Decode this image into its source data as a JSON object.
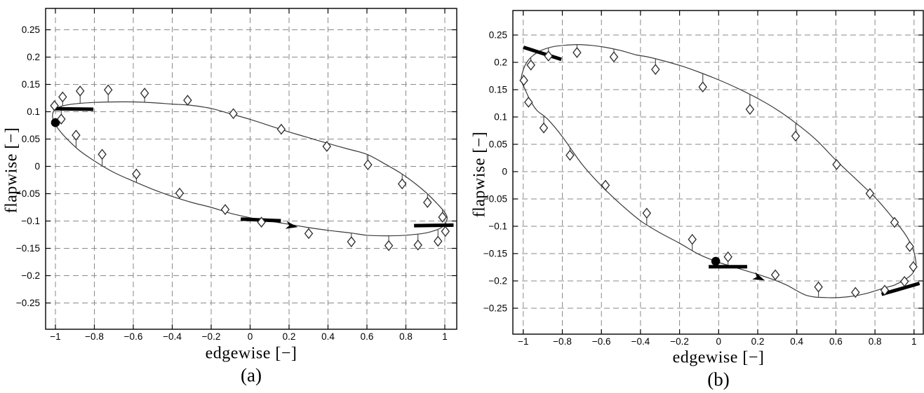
{
  "page": {
    "background": "#ffffff"
  },
  "chart_data": [
    {
      "id": "a",
      "type": "line+scatter",
      "caption": "(a)",
      "xlabel": "edgewise [−]",
      "ylabel": "flapwise [−]",
      "xlim": [
        -1.05,
        1.06
      ],
      "ylim": [
        -0.3,
        0.29
      ],
      "grid": true,
      "x_ticks": [
        -1,
        -0.8,
        -0.6,
        -0.4,
        -0.2,
        0,
        0.2,
        0.4,
        0.6,
        0.8,
        1
      ],
      "x_tick_labels": [
        "−1",
        "−0.8",
        "−0.6",
        "−0.4",
        "−0.2",
        "0",
        "0.2",
        "0.4",
        "0.6",
        "0.8",
        "1"
      ],
      "y_ticks": [
        -0.25,
        -0.2,
        -0.15,
        -0.1,
        -0.05,
        0,
        0.05,
        0.1,
        0.15,
        0.2,
        0.25
      ],
      "y_tick_labels": [
        "−0.25",
        "−0.2",
        "−0.15",
        "−0.1",
        "−0.05",
        "0",
        "0.05",
        "0.1",
        "0.15",
        "0.2",
        "0.25"
      ],
      "series": [
        {
          "name": "loop-curve",
          "type": "line",
          "closed": true,
          "points": [
            [
              -1.015,
              0.092
            ],
            [
              -1.005,
              0.103
            ],
            [
              -0.97,
              0.11
            ],
            [
              -0.9,
              0.1145
            ],
            [
              -0.8,
              0.117
            ],
            [
              -0.7,
              0.118
            ],
            [
              -0.6,
              0.118
            ],
            [
              -0.5,
              0.1165
            ],
            [
              -0.4,
              0.114
            ],
            [
              -0.31,
              0.112
            ],
            [
              -0.2,
              0.106
            ],
            [
              -0.1,
              0.096
            ],
            [
              0,
              0.086
            ],
            [
              0.1,
              0.0745
            ],
            [
              0.2,
              0.063
            ],
            [
              0.3,
              0.0525
            ],
            [
              0.4,
              0.042
            ],
            [
              0.5,
              0.032
            ],
            [
              0.6,
              0.022
            ],
            [
              0.7,
              0.003
            ],
            [
              0.78,
              -0.014
            ],
            [
              0.85,
              -0.032
            ],
            [
              0.91,
              -0.05
            ],
            [
              0.96,
              -0.068
            ],
            [
              0.995,
              -0.082
            ],
            [
              1.012,
              -0.093
            ],
            [
              1.005,
              -0.103
            ],
            [
              0.99,
              -0.11
            ],
            [
              0.96,
              -0.116
            ],
            [
              0.9,
              -0.122
            ],
            [
              0.8,
              -0.126
            ],
            [
              0.7,
              -0.127
            ],
            [
              0.6,
              -0.126
            ],
            [
              0.52,
              -0.122
            ],
            [
              0.4,
              -0.117
            ],
            [
              0.3,
              -0.112
            ],
            [
              0.2,
              -0.106
            ],
            [
              0.1,
              -0.1
            ],
            [
              0,
              -0.094
            ],
            [
              -0.1,
              -0.086
            ],
            [
              -0.2,
              -0.075
            ],
            [
              -0.3,
              -0.066
            ],
            [
              -0.4,
              -0.055
            ],
            [
              -0.5,
              -0.042
            ],
            [
              -0.6,
              -0.027
            ],
            [
              -0.7,
              -0.011
            ],
            [
              -0.8,
              0.01
            ],
            [
              -0.88,
              0.03
            ],
            [
              -0.94,
              0.05
            ],
            [
              -0.98,
              0.066
            ],
            [
              -1.005,
              0.08
            ]
          ]
        },
        {
          "name": "diamond-markers",
          "type": "scatter",
          "marker": "diamond",
          "stem_to_curve": true,
          "points": [
            [
              -1.005,
              0.111
            ],
            [
              -0.963,
              0.127
            ],
            [
              -0.873,
              0.138
            ],
            [
              -0.729,
              0.14
            ],
            [
              -0.542,
              0.134
            ],
            [
              -0.321,
              0.121
            ],
            [
              -0.086,
              0.0965
            ],
            [
              0.16,
              0.068
            ],
            [
              0.394,
              0.0365
            ],
            [
              0.605,
              0.003
            ],
            [
              0.781,
              -0.032
            ],
            [
              0.911,
              -0.066
            ],
            [
              0.988,
              -0.093
            ],
            [
              1.003,
              -0.119
            ],
            [
              0.965,
              -0.137
            ],
            [
              0.862,
              -0.144
            ],
            [
              0.712,
              -0.145
            ],
            [
              0.52,
              -0.138
            ],
            [
              0.301,
              -0.123
            ],
            [
              0.058,
              -0.102
            ],
            [
              -0.128,
              -0.079
            ],
            [
              -0.362,
              -0.049
            ],
            [
              -0.584,
              -0.014
            ],
            [
              -0.76,
              0.022
            ],
            [
              -0.894,
              0.057
            ],
            [
              -0.97,
              0.0865
            ]
          ]
        }
      ],
      "annotations": [
        {
          "type": "dot",
          "x": -1.0,
          "y": 0.08
        },
        {
          "type": "bar",
          "x1": -1.0,
          "y1": 0.1055,
          "x2": -0.805,
          "y2": 0.1045
        },
        {
          "type": "bar",
          "x1": -0.048,
          "y1": -0.0965,
          "x2": 0.158,
          "y2": -0.0995
        },
        {
          "type": "arrowhead",
          "x": 0.245,
          "y": -0.111,
          "angle_deg": 9.6
        },
        {
          "type": "bar",
          "x1": 0.842,
          "y1": -0.1085,
          "x2": 1.045,
          "y2": -0.1075
        }
      ],
      "colors": {
        "curve": "#3a3a3a",
        "marker_stroke": "#2a2a2a",
        "marker_fill": "#ffffff",
        "grid": "#8a8a8a",
        "annotation": "#000000",
        "axis": "#000000"
      }
    },
    {
      "id": "b",
      "type": "line+scatter",
      "caption": "(b)",
      "xlabel": "edgewise [−]",
      "ylabel": "flapwise [−]",
      "xlim": [
        -1.05,
        1.05
      ],
      "ylim": [
        -0.3,
        0.29
      ],
      "grid": true,
      "x_ticks": [
        -1,
        -0.8,
        -0.6,
        -0.4,
        -0.2,
        0,
        0.2,
        0.4,
        0.6,
        0.8,
        1
      ],
      "x_tick_labels": [
        "−1",
        "−0.8",
        "−0.6",
        "−0.4",
        "−0.2",
        "0",
        "0.2",
        "0.4",
        "0.6",
        "0.8",
        "1"
      ],
      "y_ticks": [
        -0.25,
        -0.2,
        -0.15,
        -0.1,
        -0.05,
        0,
        0.05,
        0.1,
        0.15,
        0.2,
        0.25
      ],
      "y_tick_labels": [
        "−0.25",
        "−0.2",
        "−0.15",
        "−0.1",
        "−0.05",
        "0",
        "0.05",
        "0.1",
        "0.15",
        "0.2",
        "0.25"
      ],
      "series": [
        {
          "name": "loop-curve",
          "type": "line",
          "closed": true,
          "points": [
            [
              -1.01,
              0.168
            ],
            [
              -1.0,
              0.186
            ],
            [
              -0.98,
              0.201
            ],
            [
              -0.95,
              0.2125
            ],
            [
              -0.91,
              0.2215
            ],
            [
              -0.85,
              0.2285
            ],
            [
              -0.78,
              0.2315
            ],
            [
              -0.72,
              0.2325
            ],
            [
              -0.65,
              0.231
            ],
            [
              -0.58,
              0.2275
            ],
            [
              -0.5,
              0.2215
            ],
            [
              -0.42,
              0.2135
            ],
            [
              -0.35,
              0.209
            ],
            [
              -0.2,
              0.1945
            ],
            [
              -0.1,
              0.182
            ],
            [
              0,
              0.168
            ],
            [
              0.1,
              0.152
            ],
            [
              0.2,
              0.134
            ],
            [
              0.3,
              0.113
            ],
            [
              0.4,
              0.0875
            ],
            [
              0.5,
              0.058
            ],
            [
              0.6,
              0.021
            ],
            [
              0.7,
              -0.013
            ],
            [
              0.8,
              -0.047
            ],
            [
              0.88,
              -0.08
            ],
            [
              0.95,
              -0.112
            ],
            [
              0.98,
              -0.13
            ],
            [
              1.0,
              -0.148
            ],
            [
              1.01,
              -0.17
            ],
            [
              0.995,
              -0.185
            ],
            [
              0.96,
              -0.196
            ],
            [
              0.9,
              -0.2075
            ],
            [
              0.85,
              -0.2125
            ],
            [
              0.75,
              -0.2235
            ],
            [
              0.65,
              -0.2295
            ],
            [
              0.55,
              -0.2305
            ],
            [
              0.45,
              -0.2265
            ],
            [
              0.35,
              -0.208
            ],
            [
              0.29,
              -0.199
            ],
            [
              0.2,
              -0.188
            ],
            [
              0.1,
              -0.177
            ],
            [
              0,
              -0.166
            ],
            [
              -0.1,
              -0.1515
            ],
            [
              -0.2,
              -0.131
            ],
            [
              -0.3,
              -0.112
            ],
            [
              -0.4,
              -0.09
            ],
            [
              -0.5,
              -0.06
            ],
            [
              -0.6,
              -0.026
            ],
            [
              -0.7,
              0.014
            ],
            [
              -0.8,
              0.064
            ],
            [
              -0.875,
              0.096
            ],
            [
              -0.93,
              0.112
            ],
            [
              -0.965,
              0.131
            ],
            [
              -0.99,
              0.15
            ]
          ]
        },
        {
          "name": "diamond-markers",
          "type": "scatter",
          "marker": "diamond",
          "stem_to_curve": true,
          "points": [
            [
              0.048,
              -0.156
            ],
            [
              0.29,
              -0.189
            ],
            [
              0.511,
              -0.211
            ],
            [
              0.7,
              -0.221
            ],
            [
              0.85,
              -0.217
            ],
            [
              0.951,
              -0.201
            ],
            [
              0.996,
              -0.174
            ],
            [
              0.978,
              -0.137
            ],
            [
              0.9,
              -0.093
            ],
            [
              0.774,
              -0.04
            ],
            [
              0.604,
              0.013
            ],
            [
              0.394,
              0.065
            ],
            [
              0.16,
              0.114
            ],
            [
              -0.081,
              0.155
            ],
            [
              -0.323,
              0.187
            ],
            [
              -0.536,
              0.21
            ],
            [
              -0.725,
              0.218
            ],
            [
              -0.871,
              0.2115
            ],
            [
              -0.961,
              0.195
            ],
            [
              -0.997,
              0.167
            ],
            [
              -0.973,
              0.127
            ],
            [
              -0.895,
              0.08
            ],
            [
              -0.761,
              0.03
            ],
            [
              -0.579,
              -0.025
            ],
            [
              -0.368,
              -0.076
            ],
            [
              -0.135,
              -0.124
            ]
          ]
        }
      ],
      "annotations": [
        {
          "type": "bar",
          "x1": -0.999,
          "y1": 0.2275,
          "x2": -0.805,
          "y2": 0.2055
        },
        {
          "type": "dot",
          "x": -0.015,
          "y": -0.164
        },
        {
          "type": "bar",
          "x1": -0.051,
          "y1": -0.174,
          "x2": 0.146,
          "y2": -0.174
        },
        {
          "type": "arrowhead",
          "x": 0.236,
          "y": -0.199,
          "angle_deg": 22.8
        },
        {
          "type": "bar",
          "x1": 0.834,
          "y1": -0.2245,
          "x2": 1.028,
          "y2": -0.2045
        }
      ],
      "colors": {
        "curve": "#3a3a3a",
        "marker_stroke": "#2a2a2a",
        "marker_fill": "#ffffff",
        "grid": "#8a8a8a",
        "annotation": "#000000",
        "axis": "#000000"
      }
    }
  ]
}
